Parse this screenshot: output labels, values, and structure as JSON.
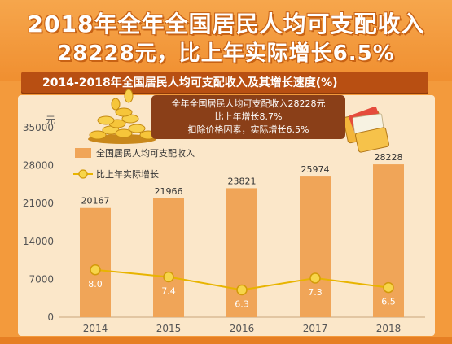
{
  "headline": {
    "line1": "2018年全年全国居民人均可支配收入",
    "line2": "28228元，比上年实际增长6.5%"
  },
  "subtitle": "2014-2018年全国居民人均可支配收入及其增长速度(%)",
  "note": {
    "line1": "全年全国居民人均可支配收入28228元",
    "line2": "比上年增长8.7%",
    "line3": "扣除价格因素，实际增长6.5%"
  },
  "colors": {
    "background": "#f39a3c",
    "panel": "#fbe7c9",
    "bar": "#f0a558",
    "line": "#e8b400",
    "marker": "#f7d54a"
  },
  "decorations": [
    "gold-coins-icon",
    "wallet-cards-icon"
  ],
  "chart_data": {
    "type": "bar",
    "title": "2014-2018年全国居民人均可支配收入及其增长速度(%)",
    "categories": [
      "2014",
      "2015",
      "2016",
      "2017",
      "2018"
    ],
    "y_unit": "元",
    "ylim": [
      0,
      35000
    ],
    "yticks": [
      0,
      7000,
      14000,
      21000,
      28000,
      35000
    ],
    "series": [
      {
        "name": "全国居民人均可支配收入",
        "type": "bar",
        "values": [
          20167,
          21966,
          23821,
          25974,
          28228
        ]
      },
      {
        "name": "比上年实际增长",
        "type": "line",
        "values": [
          8.0,
          7.4,
          6.3,
          7.3,
          6.5
        ],
        "labels": [
          "8.0",
          "7.4",
          "6.3",
          "7.3",
          "6.5"
        ]
      }
    ],
    "grid": false,
    "legend_position": "top-left"
  }
}
